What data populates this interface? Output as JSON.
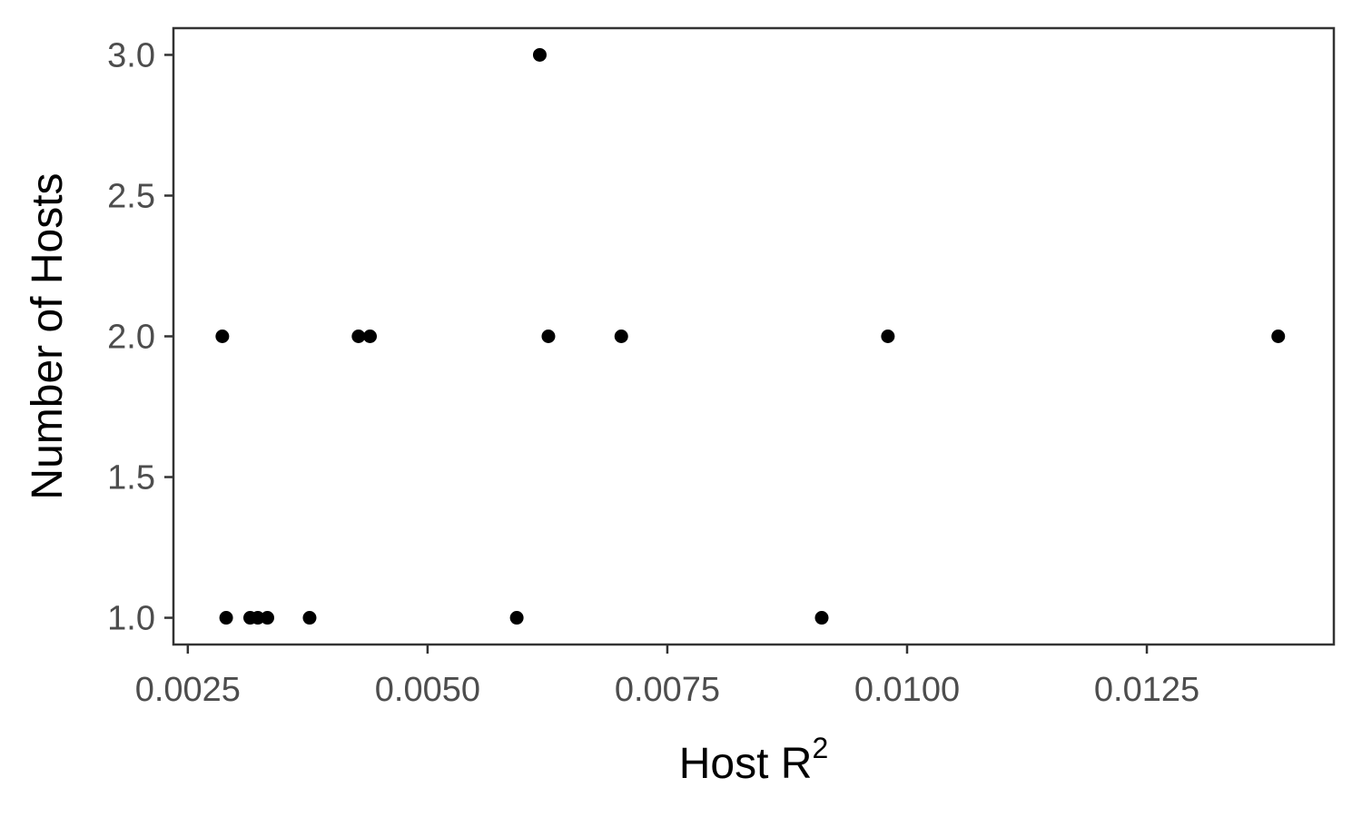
{
  "chart_data": {
    "type": "scatter",
    "title": "",
    "xlabel": "Host R",
    "xlabel_superscript": "2",
    "ylabel": "Number of Hosts",
    "xlim": [
      0.00235,
      0.01445
    ],
    "ylim": [
      0.905,
      3.095
    ],
    "x_ticks": [
      0.0025,
      0.005,
      0.0075,
      0.01,
      0.0125
    ],
    "x_tick_labels": [
      "0.0025",
      "0.0050",
      "0.0075",
      "0.0100",
      "0.0125"
    ],
    "y_ticks": [
      1.0,
      1.5,
      2.0,
      2.5,
      3.0
    ],
    "y_tick_labels": [
      "1.0",
      "1.5",
      "2.0",
      "2.5",
      "3.0"
    ],
    "grid": false,
    "legend": "none",
    "point_color": "#000000",
    "frame_color": "#333333",
    "tick_label_color": "#4d4d4d",
    "points": [
      {
        "x": 0.00286,
        "y": 2
      },
      {
        "x": 0.0029,
        "y": 1
      },
      {
        "x": 0.00315,
        "y": 1
      },
      {
        "x": 0.00323,
        "y": 1
      },
      {
        "x": 0.00333,
        "y": 1
      },
      {
        "x": 0.00377,
        "y": 1
      },
      {
        "x": 0.00428,
        "y": 2
      },
      {
        "x": 0.0044,
        "y": 2
      },
      {
        "x": 0.00593,
        "y": 1
      },
      {
        "x": 0.00617,
        "y": 3
      },
      {
        "x": 0.00626,
        "y": 2
      },
      {
        "x": 0.00702,
        "y": 2
      },
      {
        "x": 0.00911,
        "y": 1
      },
      {
        "x": 0.0098,
        "y": 2
      },
      {
        "x": 0.01387,
        "y": 2
      }
    ]
  }
}
